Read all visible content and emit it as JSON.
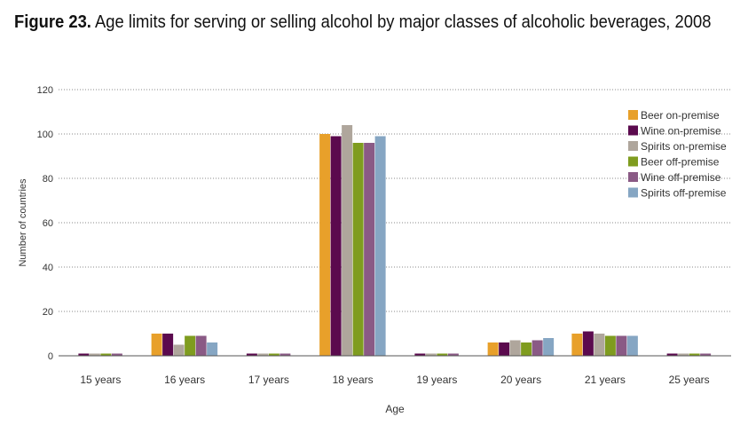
{
  "figure": {
    "title_lead": "Figure 23.",
    "title_rest": "Age limits for serving or selling alcohol by major classes of alcoholic beverages, 2008"
  },
  "colors": {
    "beer_on": "#E8A02A",
    "wine_on": "#5B0A4E",
    "spirits_on": "#AFA69C",
    "beer_off": "#7F9C1F",
    "wine_off": "#8A5A85",
    "spirits_off": "#86A6C3"
  },
  "chart_data": {
    "type": "bar",
    "title": "Age limits for serving or selling alcohol by major classes of alcoholic beverages, 2008",
    "xlabel": "Age",
    "ylabel": "Number of countries",
    "ylim": [
      0,
      120
    ],
    "yticks": [
      0,
      20,
      40,
      60,
      80,
      100,
      120
    ],
    "grid": "horizontal dotted",
    "legend_position": "top-right",
    "categories": [
      "15 years",
      "16 years",
      "17 years",
      "18 years",
      "19 years",
      "20 years",
      "21 years",
      "25 years"
    ],
    "series": [
      {
        "name": "Beer on-premise",
        "color": "#E8A02A",
        "values": [
          0,
          10,
          0,
          100,
          0,
          6,
          10,
          0
        ]
      },
      {
        "name": "Wine on-premise",
        "color": "#5B0A4E",
        "values": [
          1,
          10,
          1,
          99,
          1,
          6,
          11,
          1
        ]
      },
      {
        "name": "Spirits on-premise",
        "color": "#AFA69C",
        "values": [
          1,
          5,
          1,
          104,
          1,
          7,
          10,
          1
        ]
      },
      {
        "name": "Beer off-premise",
        "color": "#7F9C1F",
        "values": [
          1,
          9,
          1,
          96,
          1,
          6,
          9,
          1
        ]
      },
      {
        "name": "Wine off-premise",
        "color": "#8A5A85",
        "values": [
          1,
          9,
          1,
          96,
          1,
          7,
          9,
          1
        ]
      },
      {
        "name": "Spirits off-premise",
        "color": "#86A6C3",
        "values": [
          0,
          6,
          0,
          99,
          0,
          8,
          9,
          0
        ]
      }
    ]
  }
}
